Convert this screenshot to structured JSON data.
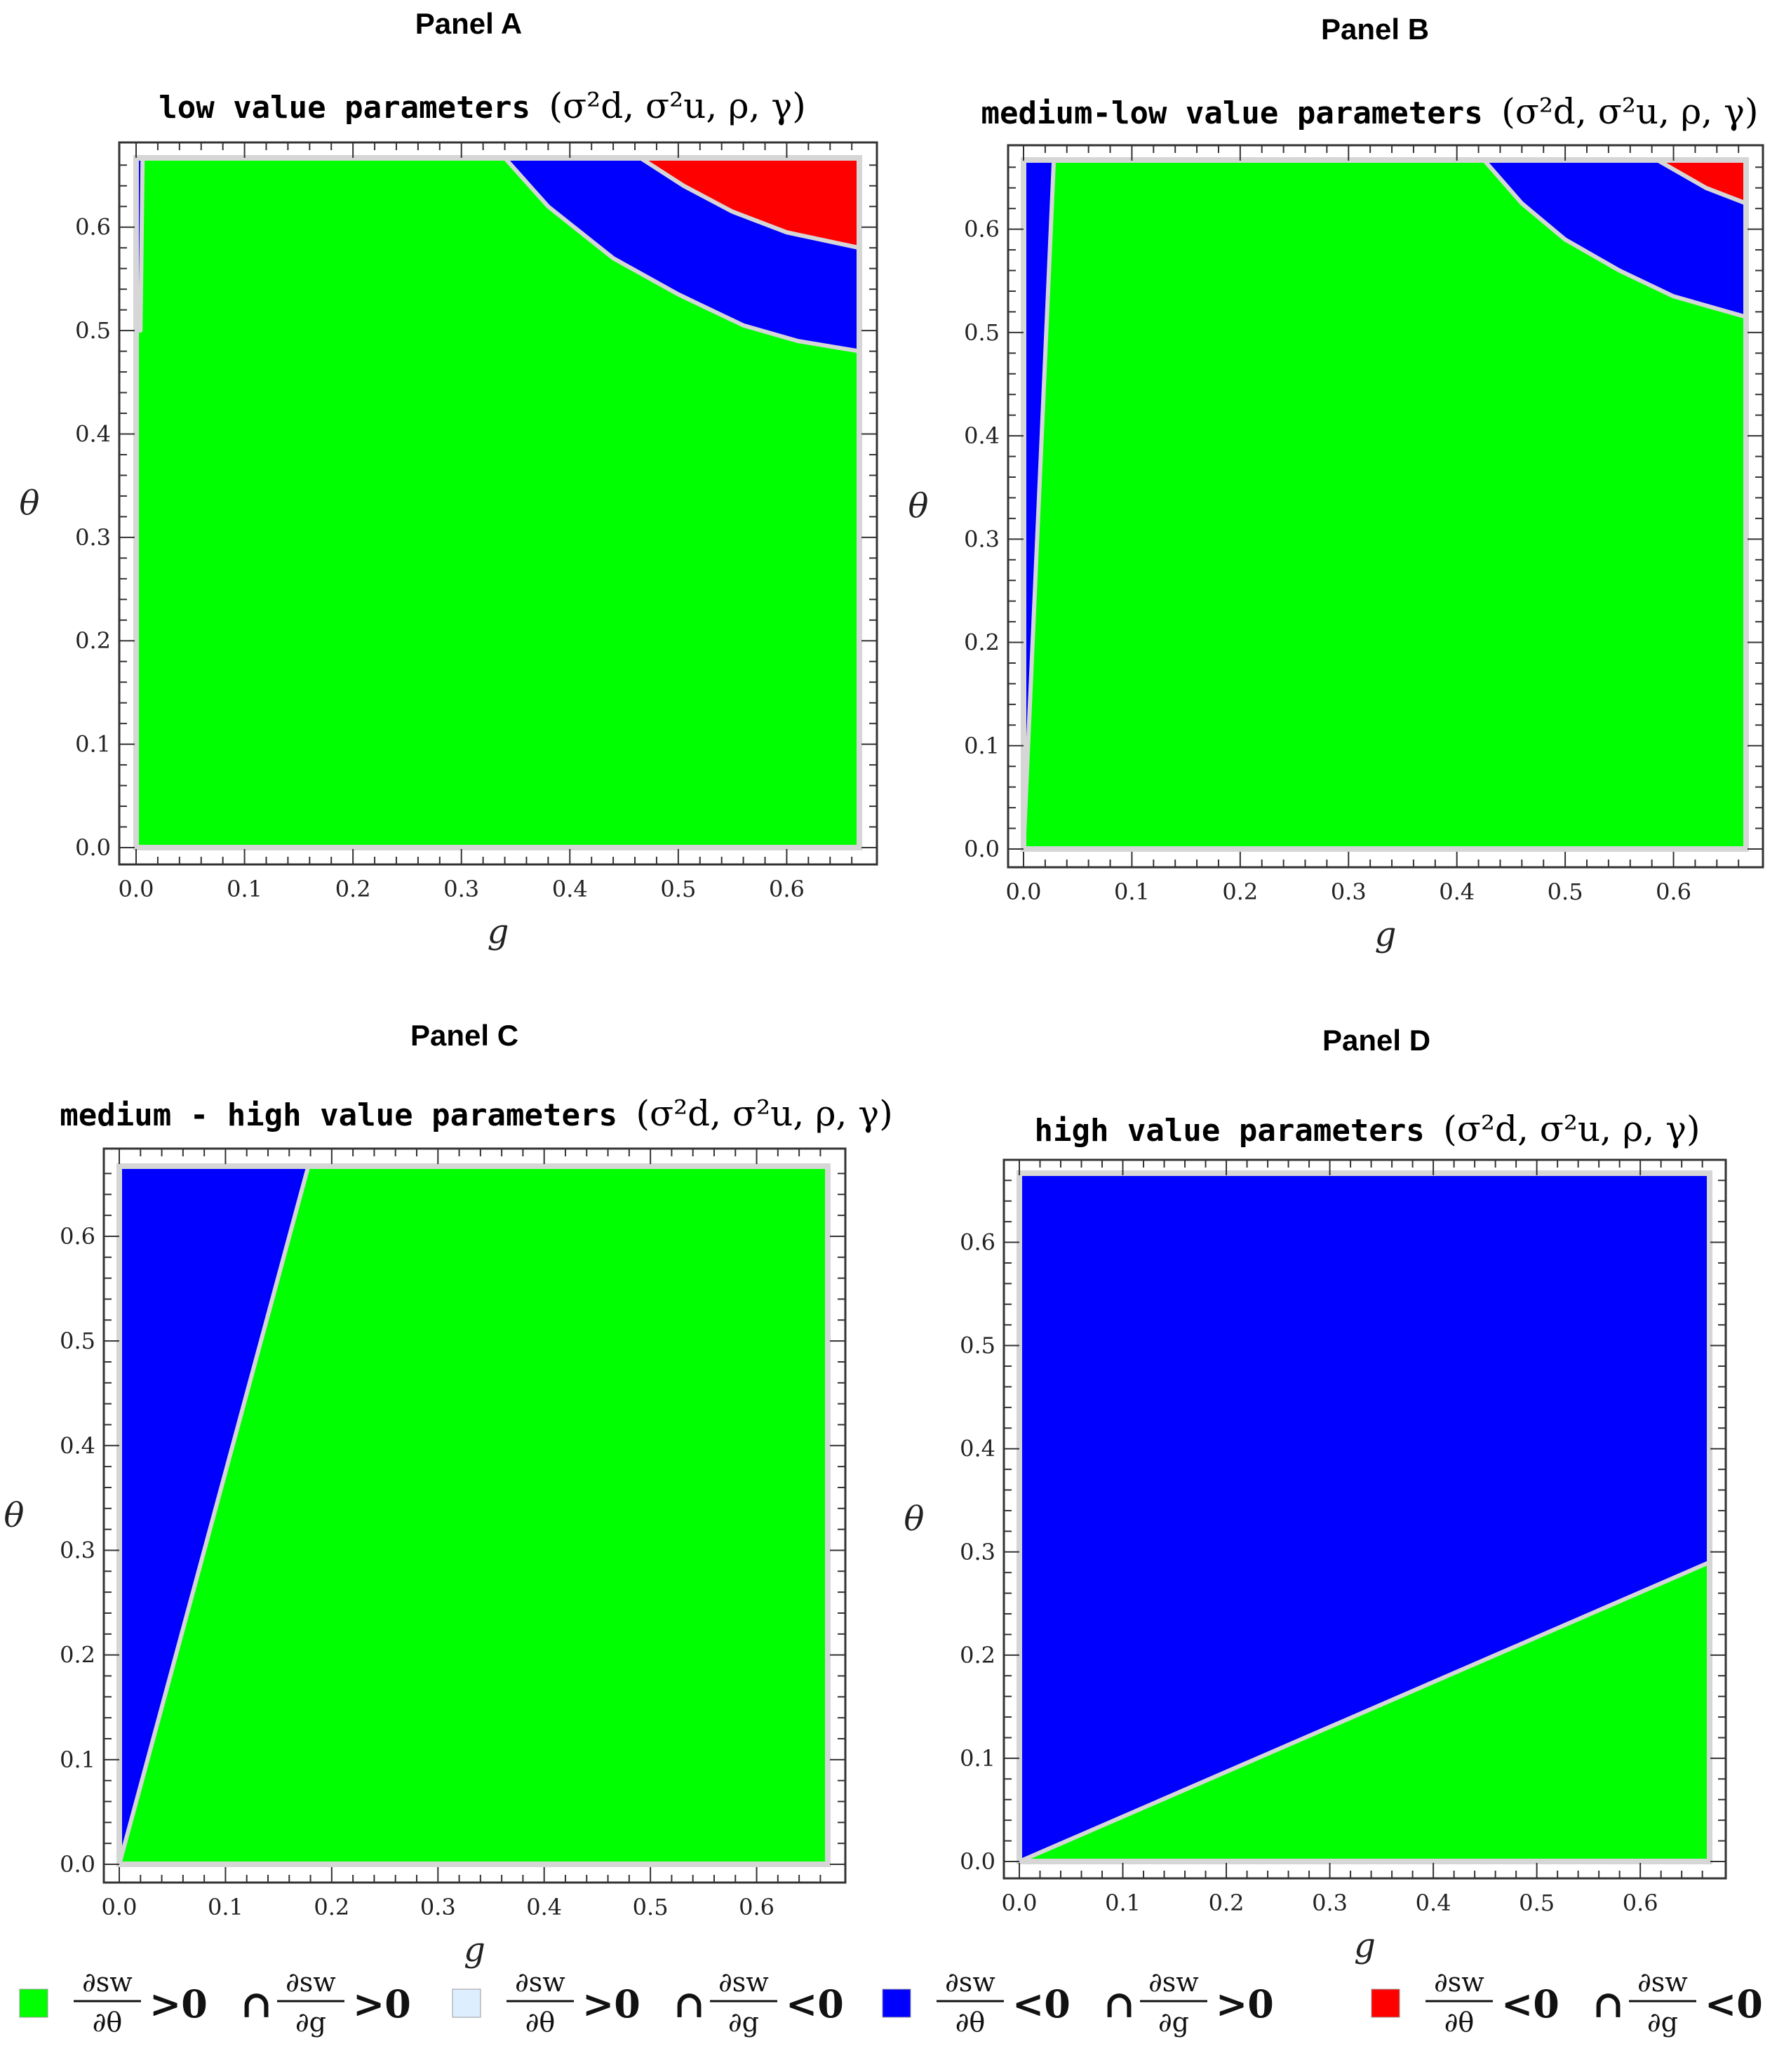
{
  "legend": [
    {
      "color": "#00ff00",
      "dtheta_sign": ">0",
      "dg_sign": ">0"
    },
    {
      "color": "#ddeeff",
      "dtheta_sign": ">0",
      "dg_sign": "<0"
    },
    {
      "color": "#0000ff",
      "dtheta_sign": "<0",
      "dg_sign": ">0"
    },
    {
      "color": "#ff0000",
      "dtheta_sign": "<0",
      "dg_sign": "<0"
    }
  ],
  "legend_terms": {
    "numerator": "∂sw",
    "den_theta": "∂θ",
    "den_g": "∂g",
    "intersection": "∩"
  },
  "colors": {
    "green": "#00ff00",
    "blue": "#0000ff",
    "red": "#ff0000",
    "boundary": "#d6d6d6",
    "frame": "#333333"
  },
  "chart_data": [
    {
      "type": "region",
      "panel": "Panel A",
      "title": "low value parameters",
      "title_params": "(σ²d, σ²u, ρ, γ)",
      "xlabel": "g",
      "ylabel": "θ",
      "xlim": [
        0,
        0.667
      ],
      "ylim": [
        0,
        0.667
      ],
      "xticks": [
        "0.0",
        "0.1",
        "0.2",
        "0.3",
        "0.4",
        "0.5",
        "0.6"
      ],
      "yticks": [
        "0.0",
        "0.1",
        "0.2",
        "0.3",
        "0.4",
        "0.5",
        "0.6"
      ],
      "background_region": "green",
      "regions": [
        {
          "color": "blue",
          "points": [
            [
              0.0,
              0.667
            ],
            [
              0.006,
              0.667
            ],
            [
              0.004,
              0.5
            ],
            [
              0.0,
              0.5
            ]
          ]
        },
        {
          "color": "blue",
          "points": [
            [
              0.34,
              0.667
            ],
            [
              0.38,
              0.62
            ],
            [
              0.44,
              0.57
            ],
            [
              0.5,
              0.535
            ],
            [
              0.56,
              0.505
            ],
            [
              0.61,
              0.49
            ],
            [
              0.667,
              0.48
            ],
            [
              0.667,
              0.58
            ],
            [
              0.6,
              0.595
            ],
            [
              0.55,
              0.615
            ],
            [
              0.505,
              0.64
            ],
            [
              0.465,
              0.667
            ]
          ]
        },
        {
          "color": "red",
          "points": [
            [
              0.465,
              0.667
            ],
            [
              0.505,
              0.64
            ],
            [
              0.55,
              0.615
            ],
            [
              0.6,
              0.595
            ],
            [
              0.667,
              0.58
            ],
            [
              0.667,
              0.667
            ]
          ]
        }
      ]
    },
    {
      "type": "region",
      "panel": "Panel B",
      "title": "medium-low value parameters",
      "title_params": "(σ²d, σ²u, ρ, γ)",
      "xlabel": "g",
      "ylabel": "θ",
      "xlim": [
        0,
        0.667
      ],
      "ylim": [
        0,
        0.667
      ],
      "xticks": [
        "0.0",
        "0.1",
        "0.2",
        "0.3",
        "0.4",
        "0.5",
        "0.6"
      ],
      "yticks": [
        "0.0",
        "0.1",
        "0.2",
        "0.3",
        "0.4",
        "0.5",
        "0.6"
      ],
      "background_region": "green",
      "regions": [
        {
          "color": "blue",
          "points": [
            [
              0.0,
              0.0
            ],
            [
              0.028,
              0.667
            ],
            [
              0.0,
              0.667
            ]
          ]
        },
        {
          "color": "blue",
          "points": [
            [
              0.425,
              0.667
            ],
            [
              0.46,
              0.625
            ],
            [
              0.5,
              0.59
            ],
            [
              0.55,
              0.56
            ],
            [
              0.6,
              0.535
            ],
            [
              0.667,
              0.515
            ],
            [
              0.667,
              0.625
            ],
            [
              0.63,
              0.64
            ],
            [
              0.585,
              0.667
            ]
          ]
        },
        {
          "color": "red",
          "points": [
            [
              0.585,
              0.667
            ],
            [
              0.63,
              0.64
            ],
            [
              0.667,
              0.625
            ],
            [
              0.667,
              0.667
            ]
          ]
        }
      ]
    },
    {
      "type": "region",
      "panel": "Panel C",
      "title": "medium - high value parameters",
      "title_params": "(σ²d, σ²u, ρ, γ)",
      "xlabel": "g",
      "ylabel": "θ",
      "xlim": [
        0,
        0.667
      ],
      "ylim": [
        0,
        0.667
      ],
      "xticks": [
        "0.0",
        "0.1",
        "0.2",
        "0.3",
        "0.4",
        "0.5",
        "0.6"
      ],
      "yticks": [
        "0.0",
        "0.1",
        "0.2",
        "0.3",
        "0.4",
        "0.5",
        "0.6"
      ],
      "background_region": "green",
      "regions": [
        {
          "color": "blue",
          "points": [
            [
              0.0,
              0.0
            ],
            [
              0.178,
              0.667
            ],
            [
              0.0,
              0.667
            ]
          ]
        }
      ]
    },
    {
      "type": "region",
      "panel": "Panel D",
      "title": "high value parameters",
      "title_params": "(σ²d, σ²u, ρ, γ)",
      "xlabel": "g",
      "ylabel": "θ",
      "xlim": [
        0,
        0.667
      ],
      "ylim": [
        0,
        0.667
      ],
      "xticks": [
        "0.0",
        "0.1",
        "0.2",
        "0.3",
        "0.4",
        "0.5",
        "0.6"
      ],
      "yticks": [
        "0.0",
        "0.1",
        "0.2",
        "0.3",
        "0.4",
        "0.5",
        "0.6"
      ],
      "background_region": "green",
      "regions": [
        {
          "color": "blue",
          "points": [
            [
              0.0,
              0.0
            ],
            [
              0.667,
              0.29
            ],
            [
              0.667,
              0.667
            ],
            [
              0.0,
              0.667
            ]
          ]
        }
      ]
    }
  ]
}
